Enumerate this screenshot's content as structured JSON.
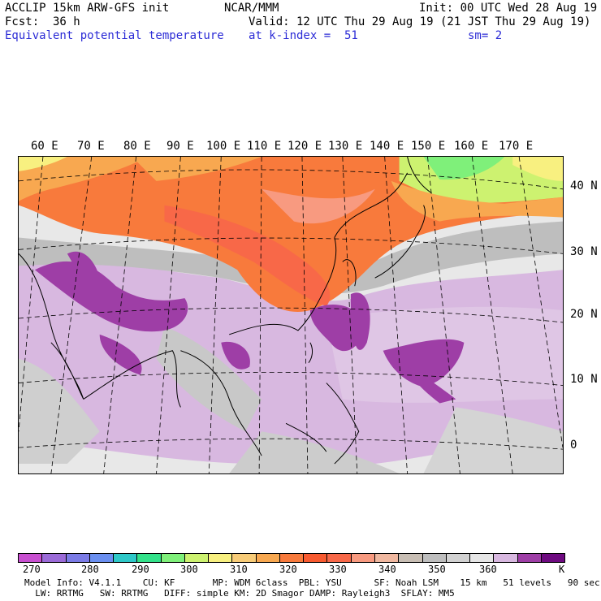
{
  "header": {
    "model": "ACCLIP 15km ARW-GFS init",
    "org": "NCAR/MMM",
    "init": "Init: 00 UTC Wed 28 Aug 19",
    "fcst": "Fcst:  36 h",
    "valid": "Valid: 12 UTC Thu 29 Aug 19 (21 JST Thu 29 Aug 19)",
    "field": "Equivalent potential temperature",
    "level": "at k-index =  51",
    "smooth": "sm= 2"
  },
  "map": {
    "lon_labels": [
      "60 E",
      "70 E",
      "80 E",
      "90 E",
      "100 E",
      "110 E",
      "120 E",
      "130 E",
      "140 E",
      "150 E",
      "160 E",
      "170 E"
    ],
    "lat_labels": [
      "40 N",
      "30 N",
      "20 N",
      "10 N",
      "0"
    ]
  },
  "colorbar": {
    "colors": [
      "#c84fd0",
      "#9b6bd8",
      "#7b7be6",
      "#6a8ff0",
      "#2ec8c8",
      "#33e28a",
      "#7ff07a",
      "#cdf270",
      "#f8f080",
      "#f8cc78",
      "#f8a850",
      "#f87a3c",
      "#f85a30",
      "#f86848",
      "#f89a80",
      "#f0b8a0",
      "#c8beb4",
      "#bebebe",
      "#d2d2d2",
      "#e6e6e6",
      "#d8b8e0",
      "#9e3ea6",
      "#6e0a80"
    ],
    "ticks": [
      "270",
      "280",
      "290",
      "300",
      "310",
      "320",
      "330",
      "340",
      "350",
      "360",
      "K"
    ]
  },
  "footer": {
    "line1": "Model Info: V4.1.1    CU: KF       MP: WDM 6class  PBL: YSU      SF: Noah LSM    15 km   51 levels   90 sec",
    "line2": "  LW: RRTMG   SW: RRTMG   DIFF: simple KM: 2D Smagor DAMP: Rayleigh3  SFLAY: MM5"
  }
}
